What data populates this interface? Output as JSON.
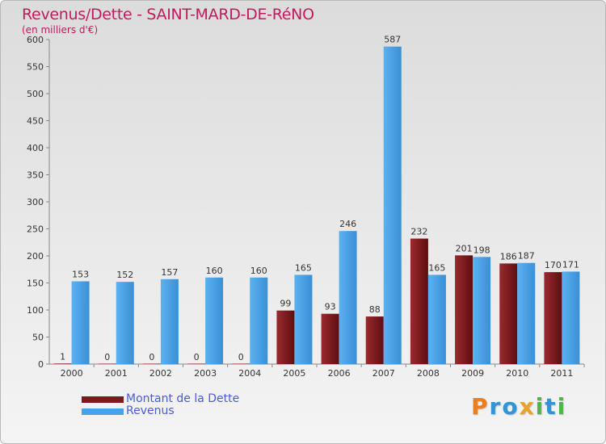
{
  "title": "Revenus/Dette - SAINT-MARD-DE-RéNO",
  "subtitle": "(en milliers d'€)",
  "logo": {
    "letters": [
      "P",
      "r",
      "o",
      "x",
      "i",
      "t",
      "i"
    ],
    "colors": [
      "#f07c1a",
      "#2e95d8",
      "#2e95d8",
      "#e8a32b",
      "#4db848",
      "#2e95d8",
      "#4db848"
    ]
  },
  "colors": {
    "dette": "#7a1a1e",
    "revenus": "#4aa3e8",
    "title": "#c5195e"
  },
  "chart_data": {
    "type": "bar",
    "categories": [
      "2000",
      "2001",
      "2002",
      "2003",
      "2004",
      "2005",
      "2006",
      "2007",
      "2008",
      "2009",
      "2010",
      "2011"
    ],
    "series": [
      {
        "name": "Montant de la Dette",
        "values": [
          1,
          0,
          0,
          0,
          0,
          99,
          93,
          88,
          232,
          201,
          186,
          170
        ]
      },
      {
        "name": "Revenus",
        "values": [
          153,
          152,
          157,
          160,
          160,
          165,
          246,
          587,
          165,
          198,
          187,
          171
        ]
      }
    ],
    "yticks": [
      0,
      50,
      100,
      150,
      200,
      250,
      300,
      350,
      400,
      450,
      500,
      550,
      600
    ],
    "ylim": [
      0,
      600
    ],
    "grid": false,
    "legend": "bottom-left"
  }
}
